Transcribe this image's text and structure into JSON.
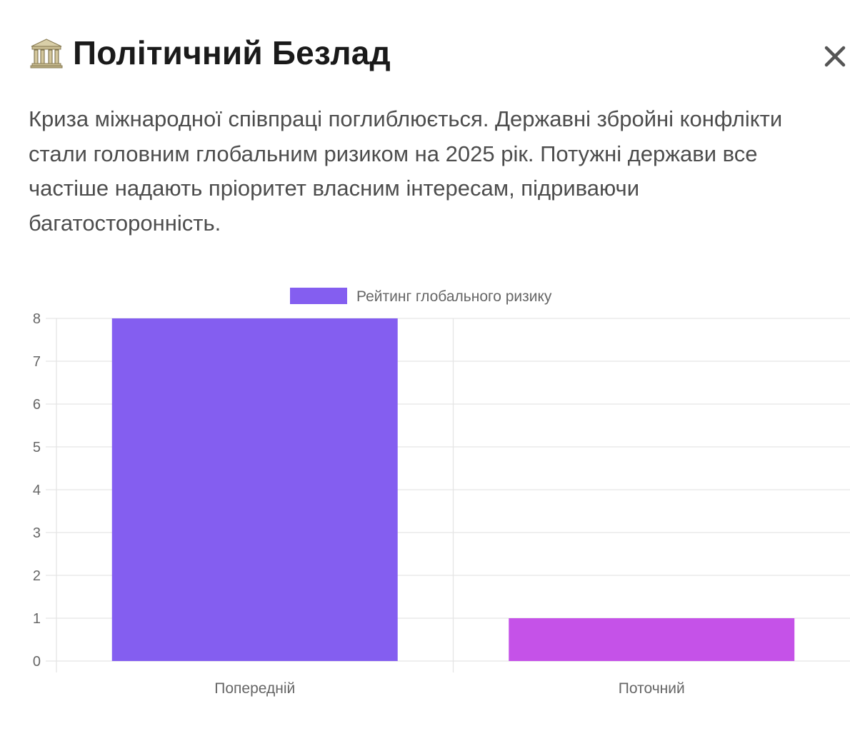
{
  "header": {
    "icon": "classical-building-icon",
    "title": "Політичний Безлад",
    "close_icon": "close-icon"
  },
  "description": "Криза міжнародної співпраці поглиблюється. Державні збройні конфлікти стали головним глобальним ризиком на 2025 рік. Потужні держави все частіше надають пріоритет власним інтересам, підриваючи багатосторонність.",
  "chart_data": {
    "type": "bar",
    "categories": [
      "Попередній",
      "Поточний"
    ],
    "series": [
      {
        "name": "Рейтинг глобального ризику",
        "values": [
          8,
          1
        ]
      }
    ],
    "bar_colors": [
      "#845ef0",
      "#c552e8"
    ],
    "legend_color": "#845ef0",
    "ylim": [
      0,
      8
    ],
    "yticks": [
      "0",
      "1",
      "2",
      "3",
      "4",
      "5",
      "6",
      "7",
      "8"
    ],
    "grid": true,
    "legend_position": "top-center"
  }
}
